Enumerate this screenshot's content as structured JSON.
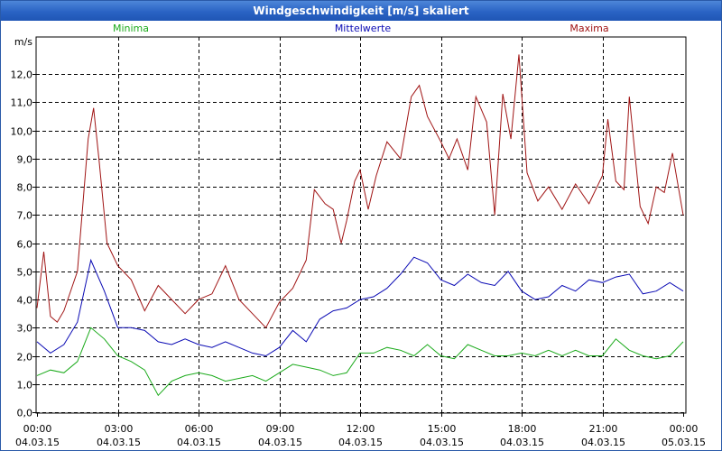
{
  "window": {
    "title": "Windgeschwindigkeit [m/s] skaliert"
  },
  "chart_data": {
    "type": "line",
    "title": "Windgeschwindigkeit [m/s] skaliert",
    "ylabel": "m/s",
    "xlabel": "",
    "ylim": [
      0,
      13
    ],
    "xlim": [
      0,
      24
    ],
    "grid": true,
    "yticks": [
      {
        "v": 0,
        "label": "0,0"
      },
      {
        "v": 1,
        "label": "1,0"
      },
      {
        "v": 2,
        "label": "2,0"
      },
      {
        "v": 3,
        "label": "3,0"
      },
      {
        "v": 4,
        "label": "4,0"
      },
      {
        "v": 5,
        "label": "5,0"
      },
      {
        "v": 6,
        "label": "6,0"
      },
      {
        "v": 7,
        "label": "7,0"
      },
      {
        "v": 8,
        "label": "8,0"
      },
      {
        "v": 9,
        "label": "9,0"
      },
      {
        "v": 10,
        "label": "10,0"
      },
      {
        "v": 11,
        "label": "11,0"
      },
      {
        "v": 12,
        "label": "12,0"
      }
    ],
    "xticks": [
      {
        "v": 0,
        "time": "00:00",
        "date": "04.03.15"
      },
      {
        "v": 3,
        "time": "03:00",
        "date": "04.03.15"
      },
      {
        "v": 6,
        "time": "06:00",
        "date": "04.03.15"
      },
      {
        "v": 9,
        "time": "09:00",
        "date": "04.03.15"
      },
      {
        "v": 12,
        "time": "12:00",
        "date": "04.03.15"
      },
      {
        "v": 15,
        "time": "15:00",
        "date": "04.03.15"
      },
      {
        "v": 18,
        "time": "18:00",
        "date": "04.03.15"
      },
      {
        "v": 21,
        "time": "21:00",
        "date": "04.03.15"
      },
      {
        "v": 24,
        "time": "00:00",
        "date": "05.03.15"
      }
    ],
    "series": [
      {
        "name": "Minima",
        "color": "#1aaa1a",
        "x": [
          0,
          0.5,
          1,
          1.5,
          2,
          2.5,
          3,
          3.5,
          4,
          4.5,
          5,
          5.5,
          6,
          6.5,
          7,
          7.5,
          8,
          8.5,
          9,
          9.5,
          10,
          10.5,
          11,
          11.5,
          12,
          12.5,
          13,
          13.5,
          14,
          14.5,
          15,
          15.5,
          16,
          16.5,
          17,
          17.5,
          18,
          18.5,
          19,
          19.5,
          20,
          20.5,
          21,
          21.5,
          22,
          22.5,
          23,
          23.5,
          24
        ],
        "values": [
          1.3,
          1.5,
          1.4,
          1.8,
          3.0,
          2.6,
          2.0,
          1.8,
          1.5,
          0.6,
          1.1,
          1.3,
          1.4,
          1.3,
          1.1,
          1.2,
          1.3,
          1.1,
          1.4,
          1.7,
          1.6,
          1.5,
          1.3,
          1.4,
          2.1,
          2.1,
          2.3,
          2.2,
          2.0,
          2.4,
          2.0,
          1.9,
          2.4,
          2.2,
          2.0,
          2.0,
          2.1,
          2.0,
          2.2,
          2.0,
          2.2,
          2.0,
          2.0,
          2.6,
          2.2,
          2.0,
          1.9,
          2.0,
          2.5
        ]
      },
      {
        "name": "Mittelwerte",
        "color": "#0a0ab4",
        "x": [
          0,
          0.5,
          1,
          1.5,
          2,
          2.5,
          3,
          3.5,
          4,
          4.5,
          5,
          5.5,
          6,
          6.5,
          7,
          7.5,
          8,
          8.5,
          9,
          9.5,
          10,
          10.5,
          11,
          11.5,
          12,
          12.5,
          13,
          13.5,
          14,
          14.5,
          15,
          15.5,
          16,
          16.5,
          17,
          17.5,
          18,
          18.5,
          19,
          19.5,
          20,
          20.5,
          21,
          21.5,
          22,
          22.5,
          23,
          23.5,
          24
        ],
        "values": [
          2.5,
          2.1,
          2.4,
          3.2,
          5.4,
          4.3,
          3.0,
          3.0,
          2.9,
          2.5,
          2.4,
          2.6,
          2.4,
          2.3,
          2.5,
          2.3,
          2.1,
          2.0,
          2.3,
          2.9,
          2.5,
          3.3,
          3.6,
          3.7,
          4.0,
          4.1,
          4.4,
          4.9,
          5.5,
          5.3,
          4.7,
          4.5,
          4.9,
          4.6,
          4.5,
          5.0,
          4.3,
          4.0,
          4.1,
          4.5,
          4.3,
          4.7,
          4.6,
          4.8,
          4.9,
          4.2,
          4.3,
          4.6,
          4.3
        ]
      },
      {
        "name": "Maxima",
        "color": "#a01414",
        "x": [
          0,
          0.25,
          0.5,
          0.75,
          1,
          1.5,
          1.9,
          2.1,
          2.3,
          2.6,
          3,
          3.5,
          4,
          4.5,
          5,
          5.5,
          6,
          6.5,
          7,
          7.5,
          8,
          8.5,
          9,
          9.5,
          10,
          10.3,
          10.7,
          11,
          11.3,
          11.5,
          11.8,
          12,
          12.3,
          12.6,
          13,
          13.5,
          13.9,
          14.2,
          14.5,
          15,
          15.3,
          15.6,
          16,
          16.3,
          16.7,
          17,
          17.3,
          17.6,
          17.9,
          18.2,
          18.6,
          19,
          19.5,
          20,
          20.5,
          21,
          21.2,
          21.5,
          21.8,
          22,
          22.4,
          22.7,
          23,
          23.3,
          23.6,
          24
        ],
        "values": [
          3.7,
          5.7,
          3.4,
          3.2,
          3.6,
          5.0,
          9.7,
          10.8,
          9.0,
          6.0,
          5.2,
          4.7,
          3.6,
          4.5,
          4.0,
          3.5,
          4.0,
          4.2,
          5.2,
          4.0,
          3.5,
          3.0,
          3.9,
          4.4,
          5.4,
          7.9,
          7.4,
          7.2,
          6.0,
          6.8,
          8.2,
          8.6,
          7.2,
          8.4,
          9.6,
          9.0,
          11.2,
          11.6,
          10.5,
          9.6,
          9.0,
          9.7,
          8.6,
          11.2,
          10.3,
          7.0,
          11.3,
          9.7,
          12.7,
          8.5,
          7.5,
          8.0,
          7.2,
          8.1,
          7.4,
          8.4,
          10.4,
          8.2,
          7.9,
          11.2,
          7.3,
          6.7,
          8.0,
          7.8,
          9.2,
          7.0
        ]
      }
    ]
  }
}
